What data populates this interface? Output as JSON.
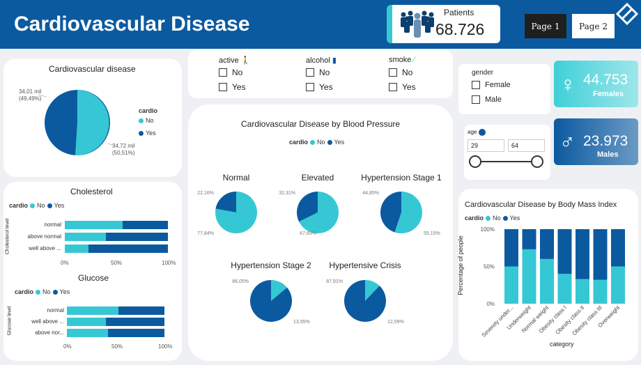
{
  "header": {
    "title": "Cardiovascular Disease",
    "patients_label": "Patients",
    "patients_value": "68.726",
    "page1": "Page 1",
    "page2": "Page 2"
  },
  "colors": {
    "no": "#35c8d4",
    "yes": "#0b5aa0",
    "header": "#0b5aa0"
  },
  "pie_main": {
    "title": "Cardiovascular disease",
    "legend_title": "cardio",
    "legend": [
      "No",
      "Yes"
    ],
    "label_yes_1": "34,01 mil",
    "label_yes_2": "(49,49%)",
    "label_no_1": "34,72 mil",
    "label_no_2": "(50,51%)"
  },
  "filters": {
    "active": {
      "label": "active",
      "options": [
        "No",
        "Yes"
      ]
    },
    "alcohol": {
      "label": "alcohol",
      "options": [
        "No",
        "Yes"
      ]
    },
    "smoke": {
      "label": "smoke",
      "options": [
        "No",
        "Yes"
      ]
    },
    "gender": {
      "label": "gender",
      "options": [
        "Female",
        "Male"
      ]
    },
    "age": {
      "label": "age",
      "min": "29",
      "max": "64"
    }
  },
  "kpi": {
    "females_value": "44.753",
    "females_label": "Females",
    "males_value": "23.973",
    "males_label": "Males"
  },
  "cholesterol": {
    "title": "Cholesterol",
    "legend_title": "cardio",
    "legend": [
      "No",
      "Yes"
    ],
    "axis_label": "Cholesterol level",
    "categories": [
      "normal",
      "above normal",
      "well above ..."
    ],
    "no_share": [
      0.56,
      0.4,
      0.23
    ],
    "ticks": [
      "0%",
      "50%",
      "100%"
    ]
  },
  "glucose": {
    "title": "Glucose",
    "legend_title": "cardio",
    "legend": [
      "No",
      "Yes"
    ],
    "axis_label": "Glucose level",
    "categories": [
      "normal",
      "well above ...",
      "above nor..."
    ],
    "no_share": [
      0.53,
      0.4,
      0.42
    ],
    "ticks": [
      "0%",
      "50%",
      "100%"
    ]
  },
  "bp": {
    "title": "Cardiovascular Disease by Blood Pressure",
    "legend_title": "cardio",
    "legend": [
      "No",
      "Yes"
    ],
    "pies": [
      {
        "name": "Normal",
        "no": 77.84,
        "yes": 22.16,
        "no_label": "77,84%",
        "yes_label": "22,16%"
      },
      {
        "name": "Elevated",
        "no": 67.69,
        "yes": 32.31,
        "no_label": "67,69%",
        "yes_label": "32,31%"
      },
      {
        "name": "Hypertension Stage 1",
        "no": 55.15,
        "yes": 44.85,
        "no_label": "55,15%",
        "yes_label": "44,85%"
      },
      {
        "name": "Hypertension Stage 2",
        "no": 13.95,
        "yes": 86.05,
        "no_label": "13,95%",
        "yes_label": "86,05%"
      },
      {
        "name": "Hypertensive Crisis",
        "no": 12.09,
        "yes": 87.91,
        "no_label": "12,09%",
        "yes_label": "87,91%"
      }
    ]
  },
  "chart_data": {
    "type": "bar",
    "title": "Cardiovascular Disease by Body Mass Index",
    "xlabel": "category",
    "ylabel": "Percentage of people",
    "legend_title": "cardio",
    "legend": [
      "No",
      "Yes"
    ],
    "categories": [
      "Severely under...",
      "Underweight",
      "Normal weight",
      "Obesity class I",
      "Obesity class II",
      "Obesity class III",
      "Overweight"
    ],
    "series": [
      {
        "name": "No",
        "values": [
          50,
          73,
          60,
          40,
          33,
          32,
          50
        ]
      },
      {
        "name": "Yes",
        "values": [
          50,
          27,
          40,
          60,
          67,
          68,
          50
        ]
      }
    ],
    "yticks": [
      "0%",
      "50%",
      "100%"
    ],
    "ylim": [
      0,
      100
    ],
    "stacked": true
  }
}
